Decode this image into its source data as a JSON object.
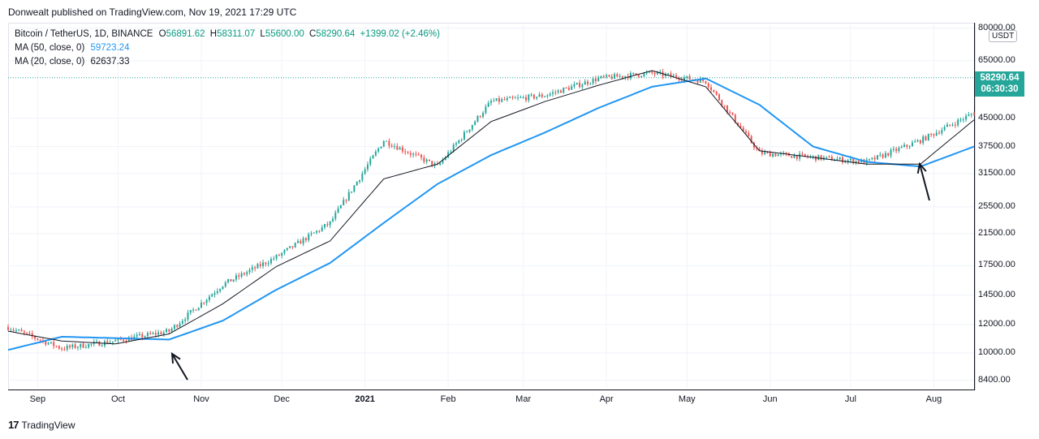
{
  "publisher_line": "Donwealt published on TradingView.com, Nov 19, 2021 17:29 UTC",
  "legend": {
    "symbol": "Bitcoin / TetherUS, 1D, BINANCE",
    "o_label": "O",
    "o": "56891.62",
    "h_label": "H",
    "h": "58311.07",
    "l_label": "L",
    "l": "55600.00",
    "c_label": "C",
    "c": "58290.64",
    "change": "+1399.02 (+2.46%)",
    "ma50_label": "MA (50, close, 0)",
    "ma50_value": "59723.24",
    "ma20_label": "MA (20, close, 0)",
    "ma20_value": "62637.33"
  },
  "price_axis": {
    "unit": "USDT",
    "labels": [
      "80000.00",
      "65000.00",
      "45000.00",
      "37500.00",
      "31500.00",
      "25500.00",
      "21500.00",
      "17500.00",
      "14500.00",
      "12000.00",
      "10000.00",
      "8400.00"
    ],
    "last_price": "58290.64",
    "countdown": "06:30:30"
  },
  "time_axis": [
    "Sep",
    "Oct",
    "Nov",
    "Dec",
    "2021",
    "Feb",
    "Mar",
    "Apr",
    "May",
    "Jun",
    "Jul",
    "Aug"
  ],
  "branding": "TradingView",
  "colors": {
    "up": "#26a69a",
    "down": "#ef5350",
    "ma50": "#2196f3",
    "ma20": "#131722"
  },
  "chart_data": {
    "type": "candlestick",
    "y_scale": "log",
    "ylim": [
      8000,
      82000
    ],
    "x": [
      "2020-08-21",
      "2020-09-10",
      "2020-09-30",
      "2020-10-20",
      "2020-11-09",
      "2020-11-29",
      "2020-12-19",
      "2021-01-08",
      "2021-01-28",
      "2021-02-17",
      "2021-03-09",
      "2021-03-29",
      "2021-04-18",
      "2021-05-08",
      "2021-05-28",
      "2021-06-17",
      "2021-07-07",
      "2021-07-27",
      "2021-08-16"
    ],
    "series": [
      {
        "name": "Bitcoin / TetherUS",
        "values": [
          11800,
          10300,
          10800,
          11500,
          15500,
          18500,
          23000,
          39000,
          33000,
          50000,
          52000,
          58000,
          60000,
          57000,
          36000,
          35000,
          34000,
          39000,
          46500
        ]
      },
      {
        "name": "MA (50, close, 0)",
        "values": [
          10200,
          11100,
          11000,
          10900,
          12300,
          15000,
          17800,
          23000,
          29500,
          35500,
          41000,
          48000,
          55000,
          58000,
          49000,
          37500,
          34000,
          33000,
          37500
        ]
      },
      {
        "name": "MA (20, close, 0)",
        "values": [
          11500,
          10800,
          10600,
          11300,
          13700,
          17400,
          20500,
          30500,
          33500,
          44000,
          50000,
          55500,
          61000,
          55000,
          36500,
          35000,
          33500,
          33500,
          44500
        ]
      }
    ],
    "annotations": [
      "arrow-up-oct",
      "arrow-up-aug"
    ]
  }
}
